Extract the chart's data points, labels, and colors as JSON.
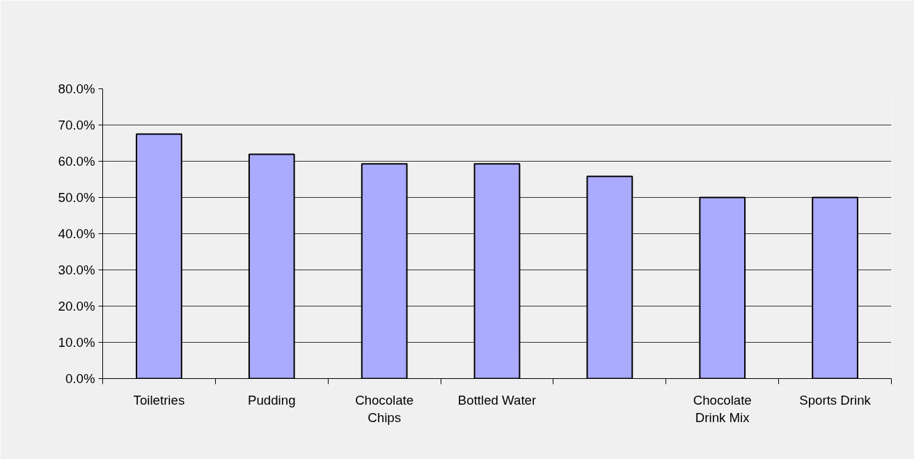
{
  "chart_data": {
    "type": "bar",
    "categories": [
      "Toiletries",
      "Pudding",
      "Chocolate Chips",
      "Bottled Water",
      null,
      "Chocolate Drink Mix",
      "Sports Drink"
    ],
    "values": [
      67.5,
      61.9,
      59.3,
      59.3,
      55.8,
      50.0,
      50.0
    ],
    "color": "#aaaaff",
    "ylim": [
      0,
      80
    ],
    "yticks": [
      {
        "value": 0,
        "label": "0.0%"
      },
      {
        "value": 10,
        "label": "10.0%"
      },
      {
        "value": 20,
        "label": "20.0%"
      },
      {
        "value": 30,
        "label": "30.0%"
      },
      {
        "value": 40,
        "label": "40.0%"
      },
      {
        "value": 50,
        "label": "50.0%"
      },
      {
        "value": 60,
        "label": "60.0%"
      },
      {
        "value": 70,
        "label": "70.0%"
      },
      {
        "value": 80,
        "label": "80.0%"
      }
    ],
    "grid": "y"
  }
}
